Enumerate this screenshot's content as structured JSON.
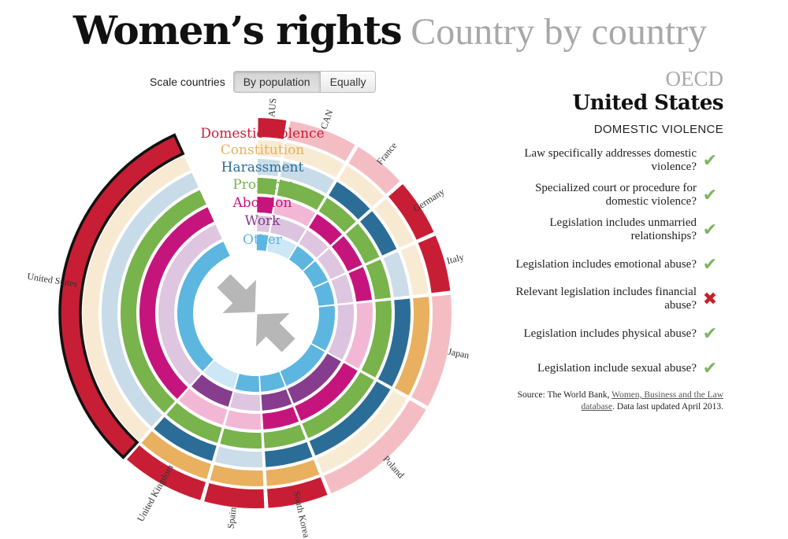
{
  "header": {
    "title": "Women’s rights",
    "subtitle": "Country by country"
  },
  "scale": {
    "label": "Scale countries",
    "options": [
      "By population",
      "Equally"
    ],
    "selected": "By population"
  },
  "categories": [
    {
      "name": "Domestic violence",
      "color": "#c81e35"
    },
    {
      "name": "Constitution",
      "color": "#e9b060"
    },
    {
      "name": "Harassment",
      "color": "#2b6d97"
    },
    {
      "name": "Property",
      "color": "#78b34b"
    },
    {
      "name": "Abortion",
      "color": "#c5157d"
    },
    {
      "name": "Work",
      "color": "#863d8e"
    },
    {
      "name": "Other",
      "color": "#5cb6e0"
    }
  ],
  "countries": [
    {
      "name": "AUS"
    },
    {
      "name": "CAN"
    },
    {
      "name": "France"
    },
    {
      "name": "Germany"
    },
    {
      "name": "Italy"
    },
    {
      "name": "Japan"
    },
    {
      "name": "Poland"
    },
    {
      "name": "South Korea"
    },
    {
      "name": "Spain"
    },
    {
      "name": "United Kingdom"
    },
    {
      "name": "United States"
    }
  ],
  "detail": {
    "group": "OECD",
    "country": "United States",
    "category": "DOMESTIC VIOLENCE",
    "questions": [
      {
        "text": "Law specifically addresses domestic violence?",
        "answer": "yes"
      },
      {
        "text": "Specialized court or procedure for domestic violence?",
        "answer": "yes"
      },
      {
        "text": "Legislation includes unmarried relationships?",
        "answer": "yes"
      },
      {
        "text": "Legislation includes emotional abuse?",
        "answer": "yes"
      },
      {
        "text": "Relevant legislation includes financial abuse?",
        "answer": "no"
      },
      {
        "text": "Legislation includes physical abuse?",
        "answer": "yes"
      },
      {
        "text": "Legislation include sexual abuse?",
        "answer": "yes"
      }
    ],
    "source": {
      "prefix": "Source: The World Bank,",
      "link": "Women, Business and the Law database",
      "suffix": ". Data last updated April 2013."
    }
  },
  "icons": {
    "yes": "check-icon",
    "no": "cross-icon",
    "center": "compress-arrows-icon"
  }
}
